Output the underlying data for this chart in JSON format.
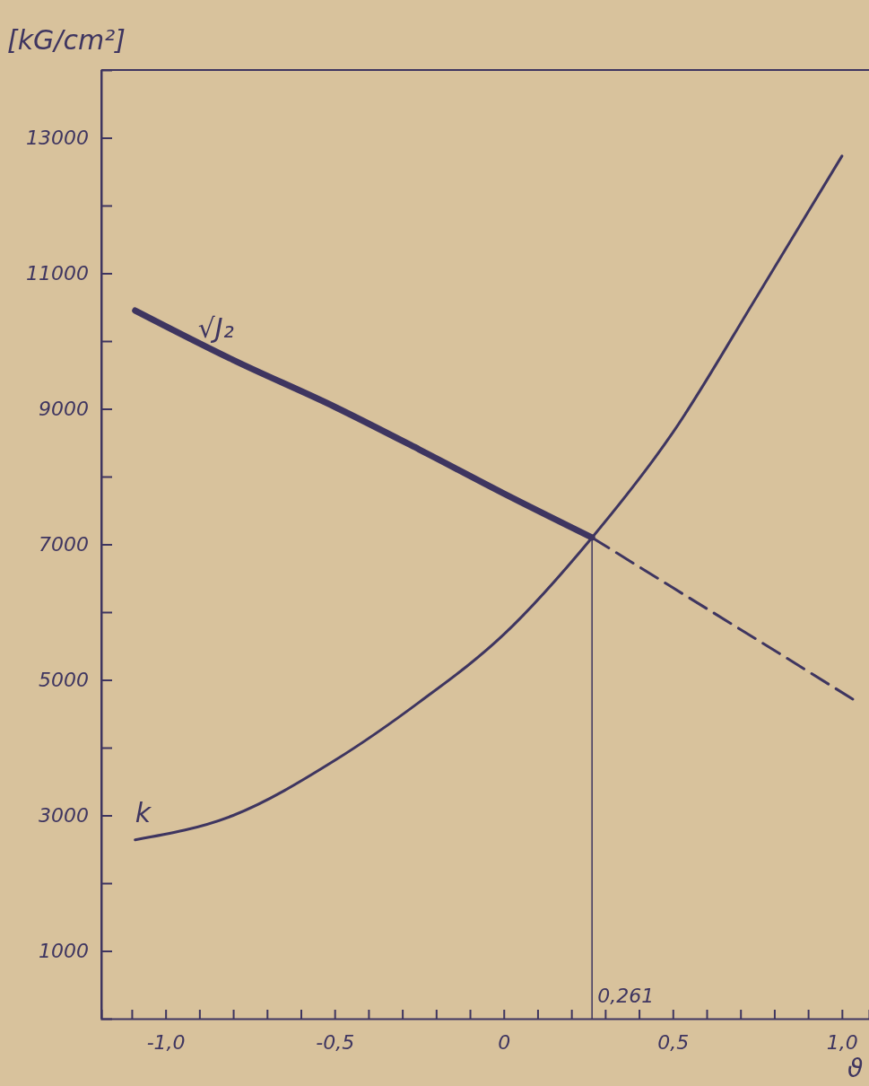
{
  "chart_data": {
    "type": "line",
    "ylabel": "[kG/cm²]",
    "xlabel": "ϑ",
    "xlim": [
      -1.19,
      1.08
    ],
    "ylim": [
      0,
      14000
    ],
    "xticks": [
      {
        "value": -1.1,
        "label": null
      },
      {
        "value": -1.0,
        "label": "-1,0"
      },
      {
        "value": -0.9,
        "label": null
      },
      {
        "value": -0.8,
        "label": null
      },
      {
        "value": -0.7,
        "label": null
      },
      {
        "value": -0.6,
        "label": null
      },
      {
        "value": -0.5,
        "label": "-0,5"
      },
      {
        "value": -0.4,
        "label": null
      },
      {
        "value": -0.3,
        "label": null
      },
      {
        "value": -0.2,
        "label": null
      },
      {
        "value": -0.1,
        "label": null
      },
      {
        "value": 0,
        "label": "0"
      },
      {
        "value": 0.1,
        "label": null
      },
      {
        "value": 0.2,
        "label": null
      },
      {
        "value": 0.3,
        "label": null
      },
      {
        "value": 0.4,
        "label": null
      },
      {
        "value": 0.5,
        "label": "0,5"
      },
      {
        "value": 0.6,
        "label": null
      },
      {
        "value": 0.7,
        "label": null
      },
      {
        "value": 0.8,
        "label": null
      },
      {
        "value": 0.9,
        "label": null
      },
      {
        "value": 1.0,
        "label": "1,0"
      }
    ],
    "yticks": [
      1000,
      {
        "value": 2000,
        "label": null
      },
      3000,
      {
        "value": 4000,
        "label": null
      },
      5000,
      {
        "value": 6000,
        "label": null
      },
      7000,
      {
        "value": 8000,
        "label": null
      },
      9000,
      {
        "value": 10000,
        "label": null
      },
      11000,
      {
        "value": 12000,
        "label": null
      },
      13000
    ],
    "grid": false,
    "marker": "none",
    "series": [
      {
        "name": "√J₂",
        "color": "#3e3560",
        "line_style": "solid",
        "x": [
          -1.09,
          -0.8,
          -0.5,
          -0.25,
          0,
          0.261
        ],
        "values": [
          10450,
          9720,
          9030,
          8400,
          7750,
          7100
        ]
      },
      {
        "color": "#3e3560",
        "line_style": "dashed",
        "x": [
          0.261,
          0.5,
          0.75,
          1.04
        ],
        "values": [
          7100,
          6360,
          5590,
          4690
        ]
      },
      {
        "name": "k",
        "color": "#3e3560",
        "line_style": "solid",
        "x": [
          -1.09,
          -0.8,
          -0.5,
          -0.25,
          0,
          0.261,
          0.5,
          0.75,
          1.0
        ],
        "values": [
          2640,
          3000,
          3810,
          4670,
          5670,
          7100,
          8650,
          10670,
          12730
        ]
      }
    ],
    "ref_lines": [
      {
        "axis": "x",
        "value": 0.261,
        "label": "0,261",
        "color": "#3e3560"
      }
    ]
  }
}
